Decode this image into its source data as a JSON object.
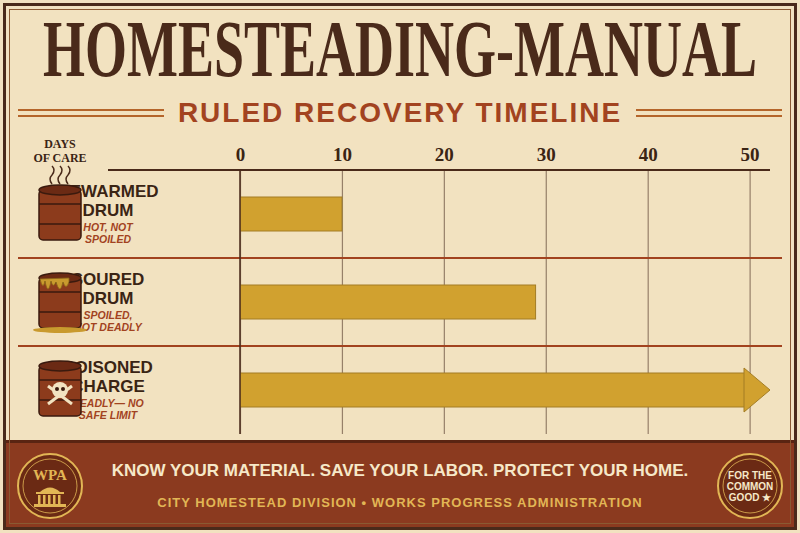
{
  "chart_data": {
    "type": "bar",
    "title": "HOMESTEADING-MANUAL",
    "subtitle": "RULED RECOVERY TIMELINE",
    "orientation": "horizontal",
    "xlabel": "DAYS OF CARE",
    "categories": [
      "REWARMED DRUM",
      "SOURED DRUM",
      "POISONED CHARGE"
    ],
    "category_notes": [
      "HOT, NOT SPOILED",
      "SPOILED, NOT DEADLY",
      "DEADLY— NO SAFE LIMIT"
    ],
    "values": [
      10,
      29,
      52
    ],
    "open_ended": [
      false,
      false,
      true
    ],
    "color": "#d1a12f",
    "xlim": [
      0,
      52
    ],
    "xticks": [
      0,
      10,
      20,
      30,
      40,
      50
    ],
    "grid": true
  },
  "footer": {
    "motto": "KNOW YOUR MATERIAL. SAVE YOUR LABOR. PROTECT YOUR HOME.",
    "credit": "CITY HOMESTEAD DIVISION • WORKS PROGRESS ADMINISTRATION",
    "left_badge": "WPA",
    "right_badge": "FOR THE COMMON GOOD ★"
  }
}
